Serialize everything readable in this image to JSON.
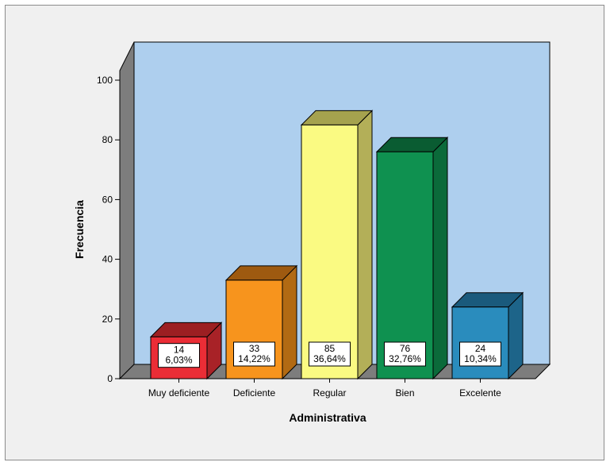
{
  "chart_data": {
    "type": "bar",
    "title": "",
    "xlabel": "Administrativa",
    "ylabel": "Frecuencia",
    "ylim": [
      0,
      100
    ],
    "yticks": [
      0,
      20,
      40,
      60,
      80,
      100
    ],
    "grid": false,
    "style": "3d",
    "plot_background": "#aecfee",
    "categories": [
      "Muy deficiente",
      "Deficiente",
      "Regular",
      "Bien",
      "Excelente"
    ],
    "values": [
      14,
      33,
      85,
      76,
      24
    ],
    "percent_labels": [
      "6,03%",
      "14,22%",
      "36,64%",
      "32,76%",
      "10,34%"
    ],
    "colors": [
      {
        "front": "#ea2d36",
        "top": "#9c1f22",
        "side": "#a82227"
      },
      {
        "front": "#f7941d",
        "top": "#9e5a10",
        "side": "#b26a13"
      },
      {
        "front": "#fafa82",
        "top": "#a5a24e",
        "side": "#b3af58"
      },
      {
        "front": "#0f9150",
        "top": "#0a5c32",
        "side": "#0b6a3a"
      },
      {
        "front": "#2a8cbd",
        "top": "#1a5a7c",
        "side": "#1d6489"
      }
    ]
  }
}
